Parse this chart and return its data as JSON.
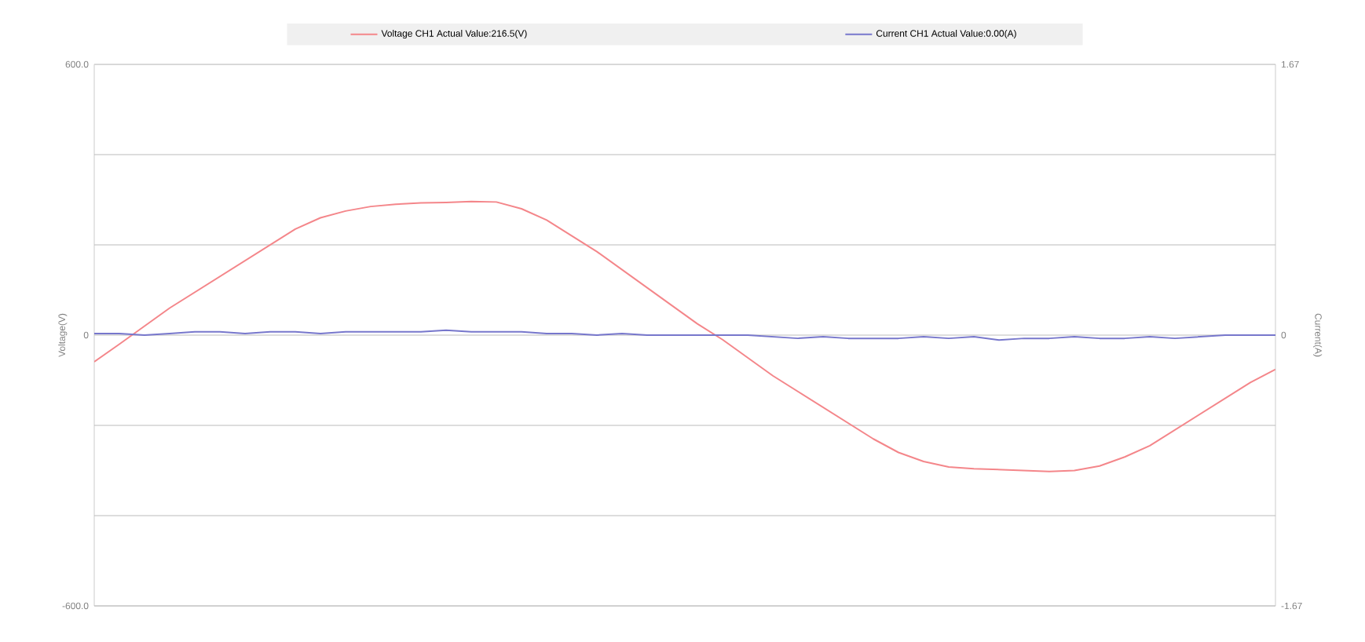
{
  "chart_data": {
    "type": "line",
    "ylabel": "Voltage(V)",
    "y2label": "Current(A)",
    "categories": [
      null,
      null,
      null,
      null,
      null,
      null,
      null,
      null,
      null,
      null,
      null,
      null,
      null,
      null,
      null,
      null,
      null,
      null,
      null,
      null,
      null,
      null,
      null,
      null,
      null,
      null,
      null,
      null,
      null,
      null,
      null,
      null,
      null,
      null,
      null,
      null,
      null,
      null,
      null,
      null,
      null,
      null,
      null,
      null,
      null,
      null,
      null,
      null
    ],
    "series": [
      {
        "name": "Voltage CH1  Actual Value:216.5(V)",
        "color": "#f4868a",
        "values": [
          -59,
          -20,
          20,
          60,
          95,
          130,
          165,
          200,
          235,
          260,
          275,
          285,
          290,
          293,
          294,
          296,
          295,
          280,
          255,
          220,
          185,
          145,
          105,
          65,
          25,
          -10,
          -50,
          -90,
          -125,
          -160,
          -195,
          -230,
          -260,
          -280,
          -292,
          -296,
          -298,
          -300,
          -302,
          -300,
          -290,
          -270,
          -245,
          -210,
          -175,
          -140,
          -105,
          -76
        ]
      },
      {
        "name": "Current CH1  Actual Value:0.00(A)",
        "color": "#7777cc",
        "axis": "y2",
        "values": [
          0.01,
          0.01,
          0.0,
          0.01,
          0.02,
          0.02,
          0.01,
          0.02,
          0.02,
          0.01,
          0.02,
          0.02,
          0.02,
          0.02,
          0.03,
          0.02,
          0.02,
          0.02,
          0.01,
          0.01,
          0.0,
          0.01,
          0.0,
          0.0,
          0.0,
          0.0,
          0.0,
          -0.01,
          -0.02,
          -0.01,
          -0.02,
          -0.02,
          -0.02,
          -0.01,
          -0.02,
          -0.01,
          -0.03,
          -0.02,
          -0.02,
          -0.01,
          -0.02,
          -0.02,
          -0.01,
          -0.02,
          -0.01,
          0.0,
          0.0,
          0.0
        ]
      }
    ],
    "ylim": [
      -600,
      600
    ],
    "yticks": [
      {
        "value": -600,
        "label": "-600.0"
      },
      {
        "value": -400,
        "label": null
      },
      {
        "value": -200,
        "label": null
      },
      {
        "value": 0,
        "label": "0"
      },
      {
        "value": 200,
        "label": null
      },
      {
        "value": 400,
        "label": null
      },
      {
        "value": 600,
        "label": "600.0"
      }
    ],
    "y2lim": [
      -1.67,
      1.67
    ],
    "y2ticks": [
      -1.67,
      0,
      1.67
    ],
    "grid": "y",
    "legend": "top",
    "tick_labels": "y"
  }
}
